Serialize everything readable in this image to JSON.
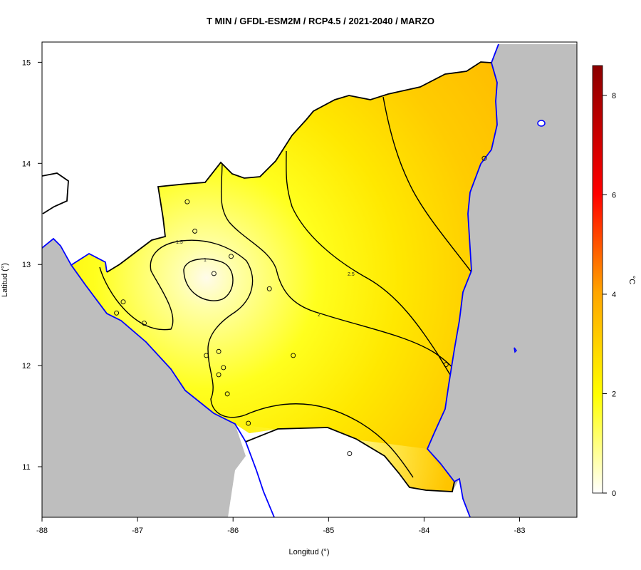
{
  "title": "T MIN / GFDL-ESM2M / RCP4.5 / 2021-2040 / MARZO",
  "map": {
    "xlabel": "Longitud (°)",
    "ylabel": "Latitud (°)",
    "x_ticks": [
      "-88",
      "-87",
      "-86",
      "-85",
      "-84",
      "-83"
    ],
    "y_ticks": [
      "11",
      "12",
      "13",
      "14",
      "15"
    ],
    "xlim": [
      -88,
      -82.4
    ],
    "ylim": [
      10.5,
      15.2
    ],
    "background_color": "#bebebe",
    "coast_color": "#0000ff",
    "border_color": "#000000"
  },
  "contours": {
    "labels": [
      "1",
      "1.5",
      "2",
      "2.5"
    ]
  },
  "colorbar": {
    "unit_label": "°C",
    "ticks": [
      "0",
      "2",
      "4",
      "6",
      "8"
    ],
    "range": [
      0,
      8.6
    ],
    "colors": [
      "#ffffff",
      "#ffff00",
      "#ffa500",
      "#ff0000",
      "#8b0000"
    ]
  },
  "stations": [
    {
      "lon": -86.48,
      "lat": 13.62
    },
    {
      "lon": -86.4,
      "lat": 13.33
    },
    {
      "lon": -86.02,
      "lat": 13.08
    },
    {
      "lon": -86.2,
      "lat": 12.91
    },
    {
      "lon": -85.62,
      "lat": 12.76
    },
    {
      "lon": -87.15,
      "lat": 12.63
    },
    {
      "lon": -87.22,
      "lat": 12.52
    },
    {
      "lon": -86.93,
      "lat": 12.42
    },
    {
      "lon": -86.15,
      "lat": 12.14
    },
    {
      "lon": -86.28,
      "lat": 12.1
    },
    {
      "lon": -85.37,
      "lat": 12.1
    },
    {
      "lon": -86.1,
      "lat": 11.98
    },
    {
      "lon": -86.15,
      "lat": 11.91
    },
    {
      "lon": -86.06,
      "lat": 11.72
    },
    {
      "lon": -85.84,
      "lat": 11.43
    },
    {
      "lon": -84.78,
      "lat": 11.13
    },
    {
      "lon": -83.77,
      "lat": 12.01
    },
    {
      "lon": -83.37,
      "lat": 14.05
    }
  ]
}
